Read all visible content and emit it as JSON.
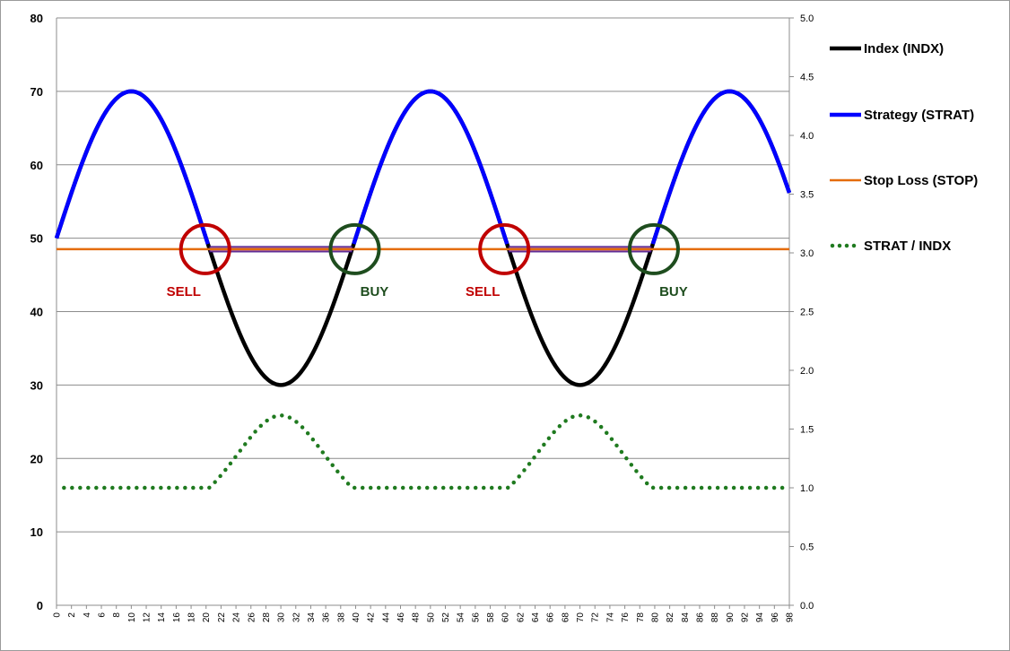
{
  "chart_data": {
    "type": "line",
    "x": {
      "min": 0,
      "max": 98,
      "step": 2
    },
    "y_left": {
      "min": 0,
      "max": 80,
      "ticks": [
        "0",
        "10",
        "20",
        "30",
        "40",
        "50",
        "60",
        "70",
        "80"
      ]
    },
    "y_right": {
      "min": 0,
      "max": 5,
      "ticks": [
        "0.0",
        "0.5",
        "1.0",
        "1.5",
        "2.0",
        "2.5",
        "3.0",
        "3.5",
        "4.0",
        "4.5",
        "5.0"
      ]
    },
    "grid": "horizontal",
    "legend_position": "right",
    "series": [
      {
        "name": "Index (INDX)",
        "color": "#000000",
        "axis": "left",
        "style": "solid",
        "formula": "50 + 20*sin(2*pi*x/40)",
        "x_range": [
          0,
          98
        ]
      },
      {
        "name": "Strategy (STRAT)",
        "color": "#0000ff",
        "axis": "left",
        "style": "solid",
        "formula": "50 + 20*sin(2*pi*x/40), shown only where above stop",
        "x_range": [
          0,
          98
        ]
      },
      {
        "name": "Stop Loss (STOP)",
        "color": "#e46c0a",
        "axis": "left",
        "style": "solid",
        "value": 48.5,
        "x_range": [
          0,
          98
        ]
      },
      {
        "name": "STRAT / INDX",
        "color": "#1f7a1f",
        "axis": "right",
        "style": "dotted",
        "formula": "max(1, 48.5/INDX)",
        "x_range": [
          1,
          98
        ]
      }
    ],
    "annotations": [
      {
        "text": "SELL",
        "x": 20,
        "y": 48.5,
        "color": "#c00000"
      },
      {
        "text": "BUY",
        "x": 40,
        "y": 48.5,
        "color": "#1e4d1e"
      },
      {
        "text": "SELL",
        "x": 60,
        "y": 48.5,
        "color": "#c00000"
      },
      {
        "text": "BUY",
        "x": 80,
        "y": 48.5,
        "color": "#1e4d1e"
      }
    ]
  }
}
